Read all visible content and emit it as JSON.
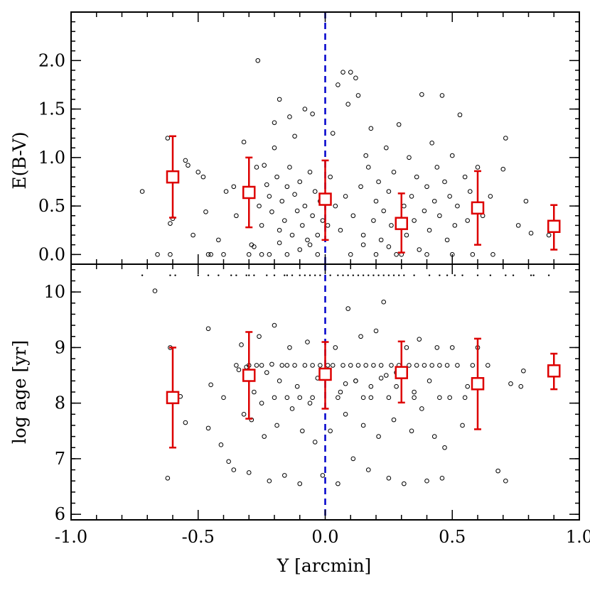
{
  "chart_data": [
    {
      "type": "scatter",
      "panel": "top",
      "xlabel": "",
      "ylabel": "E(B-V)",
      "xlim": [
        -1.0,
        1.0
      ],
      "ylim": [
        -0.1,
        2.5
      ],
      "y_ticks": [
        0.0,
        0.5,
        1.0,
        1.5,
        2.0
      ],
      "y_tick_labels": [
        "0.0",
        "0.5",
        "1.0",
        "1.5",
        "2.0"
      ],
      "grid": false,
      "vertical_line": {
        "x": 0.0,
        "color": "#0000cc",
        "style": "dashed"
      },
      "binned_means": {
        "color": "#dd0000",
        "x": [
          -0.6,
          -0.3,
          0.0,
          0.3,
          0.6,
          0.9
        ],
        "y": [
          0.8,
          0.64,
          0.57,
          0.32,
          0.48,
          0.29
        ],
        "err_low": [
          0.38,
          0.28,
          0.15,
          0.02,
          0.1,
          0.05
        ],
        "err_high": [
          1.22,
          1.0,
          0.97,
          0.63,
          0.86,
          0.51
        ]
      },
      "points": [
        [
          -0.72,
          0.65
        ],
        [
          -0.66,
          0.0
        ],
        [
          -0.62,
          1.2
        ],
        [
          -0.61,
          0.32
        ],
        [
          -0.6,
          0.37
        ],
        [
          -0.61,
          0.0
        ],
        [
          -0.55,
          0.97
        ],
        [
          -0.54,
          0.92
        ],
        [
          -0.52,
          0.2
        ],
        [
          -0.5,
          0.85
        ],
        [
          -0.48,
          0.8
        ],
        [
          -0.47,
          0.44
        ],
        [
          -0.46,
          0.0
        ],
        [
          -0.45,
          0.0
        ],
        [
          -0.42,
          0.15
        ],
        [
          -0.4,
          0.0
        ],
        [
          -0.39,
          0.65
        ],
        [
          -0.36,
          0.7
        ],
        [
          -0.35,
          0.4
        ],
        [
          -0.32,
          1.16
        ],
        [
          -0.3,
          0.6
        ],
        [
          -0.29,
          0.1
        ],
        [
          -0.28,
          0.08
        ],
        [
          -0.27,
          0.9
        ],
        [
          -0.26,
          0.5
        ],
        [
          -0.25,
          0.3
        ],
        [
          -0.24,
          0.92
        ],
        [
          -0.23,
          0.72
        ],
        [
          -0.22,
          0.6
        ],
        [
          -0.21,
          0.44
        ],
        [
          -0.2,
          1.1
        ],
        [
          -0.19,
          0.8
        ],
        [
          -0.18,
          0.25
        ],
        [
          -0.17,
          0.55
        ],
        [
          -0.16,
          0.35
        ],
        [
          -0.15,
          0.7
        ],
        [
          -0.14,
          0.9
        ],
        [
          -0.13,
          0.2
        ],
        [
          -0.12,
          0.62
        ],
        [
          -0.11,
          0.45
        ],
        [
          -0.1,
          0.75
        ],
        [
          -0.09,
          0.3
        ],
        [
          -0.08,
          0.5
        ],
        [
          -0.07,
          0.15
        ],
        [
          -0.06,
          0.85
        ],
        [
          -0.05,
          0.4
        ],
        [
          -0.04,
          0.65
        ],
        [
          -0.03,
          0.2
        ],
        [
          -0.02,
          0.55
        ],
        [
          -0.01,
          0.35
        ],
        [
          -0.265,
          2.0
        ],
        [
          -0.18,
          1.6
        ],
        [
          -0.14,
          1.42
        ],
        [
          -0.08,
          1.5
        ],
        [
          -0.05,
          1.45
        ],
        [
          -0.2,
          1.36
        ],
        [
          -0.12,
          1.22
        ],
        [
          -0.22,
          0.0
        ],
        [
          -0.15,
          0.0
        ],
        [
          -0.1,
          0.05
        ],
        [
          -0.06,
          0.1
        ],
        [
          -0.03,
          0.0
        ],
        [
          0.01,
          0.3
        ],
        [
          0.02,
          0.8
        ],
        [
          0.03,
          1.25
        ],
        [
          0.04,
          0.5
        ],
        [
          0.05,
          1.75
        ],
        [
          0.06,
          0.25
        ],
        [
          0.07,
          1.88
        ],
        [
          0.08,
          0.6
        ],
        [
          0.09,
          1.55
        ],
        [
          0.1,
          1.88
        ],
        [
          0.11,
          0.4
        ],
        [
          0.12,
          1.82
        ],
        [
          0.13,
          1.64
        ],
        [
          0.14,
          0.7
        ],
        [
          0.15,
          0.2
        ],
        [
          0.16,
          1.02
        ],
        [
          0.17,
          0.9
        ],
        [
          0.18,
          1.3
        ],
        [
          0.19,
          0.35
        ],
        [
          0.2,
          0.55
        ],
        [
          0.21,
          0.75
        ],
        [
          0.22,
          0.15
        ],
        [
          0.23,
          0.45
        ],
        [
          0.24,
          1.1
        ],
        [
          0.25,
          0.65
        ],
        [
          0.26,
          0.3
        ],
        [
          0.27,
          0.85
        ],
        [
          0.28,
          0.0
        ],
        [
          0.29,
          1.34
        ],
        [
          0.31,
          0.5
        ],
        [
          0.32,
          0.2
        ],
        [
          0.33,
          1.0
        ],
        [
          0.34,
          0.6
        ],
        [
          0.35,
          0.35
        ],
        [
          0.36,
          0.8
        ],
        [
          0.37,
          0.05
        ],
        [
          0.38,
          1.65
        ],
        [
          0.39,
          0.45
        ],
        [
          0.4,
          0.7
        ],
        [
          0.41,
          0.25
        ],
        [
          0.42,
          1.15
        ],
        [
          0.43,
          0.55
        ],
        [
          0.44,
          0.9
        ],
        [
          0.45,
          0.4
        ],
        [
          0.46,
          1.64
        ],
        [
          0.47,
          0.75
        ],
        [
          0.48,
          0.15
        ],
        [
          0.49,
          0.6
        ],
        [
          0.5,
          1.02
        ],
        [
          0.51,
          0.3
        ],
        [
          0.52,
          0.5
        ],
        [
          0.53,
          1.44
        ],
        [
          0.55,
          0.8
        ],
        [
          0.56,
          0.35
        ],
        [
          0.57,
          0.65
        ],
        [
          0.58,
          0.0
        ],
        [
          0.6,
          0.9
        ],
        [
          0.62,
          0.4
        ],
        [
          0.65,
          0.6
        ],
        [
          0.66,
          0.0
        ],
        [
          0.7,
          0.88
        ],
        [
          0.71,
          1.2
        ],
        [
          0.76,
          0.3
        ],
        [
          0.79,
          0.55
        ],
        [
          0.81,
          0.22
        ],
        [
          0.88,
          0.2
        ],
        [
          -0.3,
          0.0
        ],
        [
          -0.25,
          0.0
        ],
        [
          0.1,
          0.0
        ],
        [
          0.2,
          0.0
        ],
        [
          0.3,
          0.0
        ],
        [
          0.4,
          0.0
        ],
        [
          0.5,
          0.0
        ],
        [
          0.15,
          0.1
        ],
        [
          0.25,
          0.08
        ],
        [
          -0.18,
          0.12
        ]
      ]
    },
    {
      "type": "scatter",
      "panel": "bottom",
      "xlabel": "Y [arcmin]",
      "ylabel": "log age [yr]",
      "xlim": [
        -1.0,
        1.0
      ],
      "ylim": [
        5.9,
        10.5
      ],
      "x_ticks": [
        -1.0,
        -0.5,
        0.0,
        0.5,
        1.0
      ],
      "x_tick_labels": [
        "-1.0",
        "-0.5",
        "0.0",
        "0.5",
        "1.0"
      ],
      "y_ticks": [
        6,
        7,
        8,
        9,
        10
      ],
      "y_tick_labels": [
        "6",
        "7",
        "8",
        "9",
        "10"
      ],
      "grid": false,
      "vertical_line": {
        "x": 0.0,
        "color": "#0000cc",
        "style": "dashed"
      },
      "binned_means": {
        "color": "#dd0000",
        "x": [
          -0.6,
          -0.3,
          0.0,
          0.3,
          0.6,
          0.9
        ],
        "y": [
          8.1,
          8.5,
          8.52,
          8.55,
          8.35,
          8.58
        ],
        "err_low": [
          7.2,
          7.72,
          7.9,
          8.01,
          7.53,
          8.25
        ],
        "err_high": [
          9.0,
          9.28,
          9.1,
          9.11,
          9.16,
          8.89
        ]
      },
      "points": [
        [
          -0.67,
          10.02
        ],
        [
          -0.62,
          6.65
        ],
        [
          -0.61,
          9.0
        ],
        [
          -0.57,
          8.12
        ],
        [
          -0.55,
          7.65
        ],
        [
          -0.46,
          7.55
        ],
        [
          -0.45,
          8.33
        ],
        [
          -0.46,
          9.34
        ],
        [
          -0.41,
          7.25
        ],
        [
          -0.4,
          8.1
        ],
        [
          -0.38,
          6.95
        ],
        [
          -0.36,
          6.8
        ],
        [
          -0.34,
          8.6
        ],
        [
          -0.33,
          9.05
        ],
        [
          -0.32,
          7.8
        ],
        [
          -0.31,
          8.65
        ],
        [
          -0.3,
          6.75
        ],
        [
          -0.29,
          7.7
        ],
        [
          -0.28,
          8.2
        ],
        [
          -0.27,
          8.68
        ],
        [
          -0.26,
          9.2
        ],
        [
          -0.25,
          8.0
        ],
        [
          -0.24,
          7.4
        ],
        [
          -0.23,
          8.55
        ],
        [
          -0.22,
          6.6
        ],
        [
          -0.21,
          8.7
        ],
        [
          -0.2,
          9.4
        ],
        [
          -0.19,
          7.6
        ],
        [
          -0.18,
          8.4
        ],
        [
          -0.17,
          8.68
        ],
        [
          -0.16,
          6.7
        ],
        [
          -0.15,
          8.1
        ],
        [
          -0.14,
          9.0
        ],
        [
          -0.13,
          7.9
        ],
        [
          -0.12,
          8.68
        ],
        [
          -0.11,
          8.3
        ],
        [
          -0.1,
          6.55
        ],
        [
          -0.09,
          7.5
        ],
        [
          -0.08,
          8.68
        ],
        [
          -0.07,
          9.1
        ],
        [
          -0.06,
          8.0
        ],
        [
          -0.05,
          8.68
        ],
        [
          -0.04,
          7.3
        ],
        [
          -0.03,
          8.45
        ],
        [
          -0.02,
          8.68
        ],
        [
          -0.01,
          6.7
        ],
        [
          0.01,
          8.68
        ],
        [
          0.02,
          7.5
        ],
        [
          0.03,
          8.68
        ],
        [
          0.04,
          9.0
        ],
        [
          0.05,
          6.55
        ],
        [
          0.06,
          8.2
        ],
        [
          0.07,
          8.68
        ],
        [
          0.08,
          7.8
        ],
        [
          0.09,
          9.7
        ],
        [
          0.1,
          8.68
        ],
        [
          0.11,
          7.0
        ],
        [
          0.12,
          8.4
        ],
        [
          0.13,
          8.68
        ],
        [
          0.14,
          9.2
        ],
        [
          0.15,
          7.6
        ],
        [
          0.16,
          8.68
        ],
        [
          0.17,
          6.8
        ],
        [
          0.18,
          8.1
        ],
        [
          0.19,
          8.68
        ],
        [
          0.2,
          9.3
        ],
        [
          0.21,
          7.4
        ],
        [
          0.22,
          8.68
        ],
        [
          0.23,
          9.82
        ],
        [
          0.24,
          8.5
        ],
        [
          0.25,
          6.65
        ],
        [
          0.26,
          8.68
        ],
        [
          0.27,
          7.7
        ],
        [
          0.28,
          8.3
        ],
        [
          0.29,
          8.68
        ],
        [
          0.31,
          6.55
        ],
        [
          0.32,
          9.0
        ],
        [
          0.33,
          8.68
        ],
        [
          0.34,
          7.5
        ],
        [
          0.35,
          8.2
        ],
        [
          0.36,
          8.68
        ],
        [
          0.37,
          9.15
        ],
        [
          0.38,
          7.9
        ],
        [
          0.39,
          8.68
        ],
        [
          0.4,
          6.6
        ],
        [
          0.41,
          8.4
        ],
        [
          0.42,
          8.68
        ],
        [
          0.43,
          7.4
        ],
        [
          0.44,
          9.0
        ],
        [
          0.45,
          8.68
        ],
        [
          0.46,
          6.65
        ],
        [
          0.47,
          7.2
        ],
        [
          0.48,
          8.68
        ],
        [
          0.49,
          8.1
        ],
        [
          0.5,
          9.0
        ],
        [
          0.52,
          8.68
        ],
        [
          0.54,
          7.6
        ],
        [
          0.56,
          8.3
        ],
        [
          0.58,
          8.68
        ],
        [
          0.6,
          9.0
        ],
        [
          0.64,
          8.68
        ],
        [
          0.68,
          6.78
        ],
        [
          0.71,
          6.6
        ],
        [
          0.73,
          8.35
        ],
        [
          0.77,
          8.3
        ],
        [
          0.78,
          8.58
        ],
        [
          -0.3,
          8.68
        ],
        [
          -0.35,
          8.68
        ],
        [
          -0.25,
          8.68
        ],
        [
          -0.15,
          8.68
        ],
        [
          -0.05,
          8.1
        ],
        [
          0.05,
          8.1
        ],
        [
          0.15,
          8.1
        ],
        [
          0.25,
          8.1
        ],
        [
          0.35,
          8.1
        ],
        [
          0.45,
          8.1
        ],
        [
          0.55,
          8.1
        ],
        [
          -0.1,
          8.1
        ],
        [
          -0.2,
          8.1
        ],
        [
          0.12,
          8.4
        ],
        [
          0.18,
          8.3
        ],
        [
          0.22,
          8.45
        ],
        [
          0.28,
          8.55
        ],
        [
          0.08,
          8.35
        ]
      ],
      "saturated_points_y": 10.3,
      "saturated_points_x": [
        -0.72,
        -0.61,
        -0.59,
        -0.5,
        -0.46,
        -0.42,
        -0.37,
        -0.35,
        -0.31,
        -0.3,
        -0.28,
        -0.23,
        -0.2,
        -0.16,
        -0.15,
        -0.13,
        -0.1,
        -0.08,
        -0.06,
        -0.04,
        -0.02,
        0.02,
        0.05,
        0.07,
        0.09,
        0.11,
        0.13,
        0.15,
        0.17,
        0.19,
        0.21,
        0.23,
        0.25,
        0.27,
        0.29,
        0.31,
        0.35,
        0.41,
        0.45,
        0.48,
        0.51,
        0.54,
        0.6,
        0.65,
        0.71,
        0.74,
        0.81,
        0.82,
        0.88
      ]
    }
  ]
}
